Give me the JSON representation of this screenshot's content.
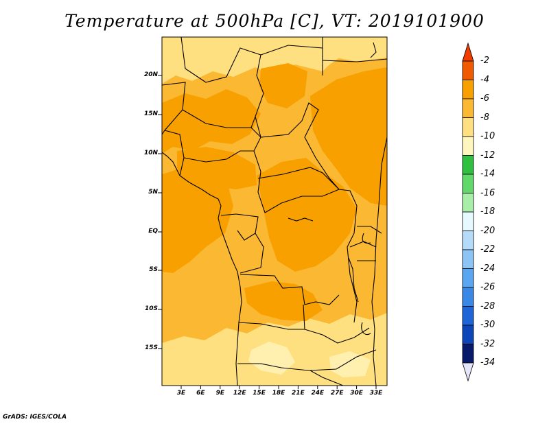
{
  "title": "Temperature at 500hPa [C], VT: 2019101900",
  "credit": "GrADS: IGES/COLA",
  "map": {
    "lat_labels": [
      "20N",
      "15N",
      "10N",
      "5N",
      "EQ",
      "5S",
      "10S",
      "15S"
    ],
    "lon_labels": [
      "3E",
      "6E",
      "9E",
      "12E",
      "15E",
      "18E",
      "21E",
      "24E",
      "27E",
      "30E",
      "33E"
    ],
    "fill_colors": {
      "lt-10": "#fff0b0",
      "m10-8": "#ffe080",
      "m8-6": "#fbb832",
      "m6-4": "#f7a000"
    }
  },
  "colorbar": {
    "labels": [
      "-2",
      "-4",
      "-6",
      "-8",
      "-10",
      "-12",
      "-14",
      "-16",
      "-18",
      "-20",
      "-22",
      "-24",
      "-26",
      "-28",
      "-30",
      "-32",
      "-34"
    ],
    "colors": [
      "#f05a00",
      "#f7a000",
      "#fbb832",
      "#ffe080",
      "#fff6bf",
      "#30c040",
      "#60d86a",
      "#a8eda8",
      "#e6f9ff",
      "#b4dcf8",
      "#8cc4f4",
      "#5aa6f0",
      "#3a88e6",
      "#1e66d8",
      "#0c46b8",
      "#081a6a"
    ],
    "top_arrow": "#f03c00",
    "bottom_arrow": "#e6e6fa"
  }
}
